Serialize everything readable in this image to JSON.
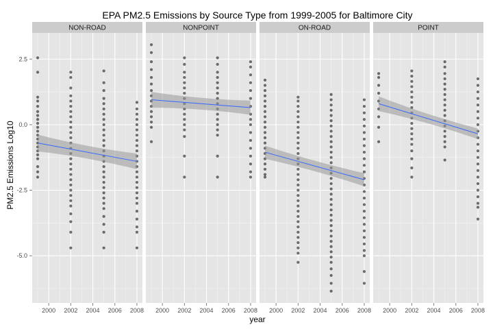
{
  "chart_data": {
    "type": "scatter",
    "title": "EPA PM2.5 Emissions by Source Type from 1999-2005 for Baltimore City",
    "xlabel": "year",
    "ylabel": "PM2.5 Emissions Log10",
    "xlim": [
      1998.5,
      2008.5
    ],
    "ylim": [
      -6.8,
      3.5
    ],
    "x_ticks": [
      2000,
      2002,
      2004,
      2006,
      2008
    ],
    "x_tick_labels": [
      "2000",
      "2002",
      "2004",
      "2006",
      "2008"
    ],
    "y_ticks": [
      2.5,
      0.0,
      -2.5,
      -5.0
    ],
    "y_tick_labels": [
      "2.5",
      "0.0",
      "-2.5",
      "-5.0"
    ],
    "grid": true,
    "smoother": "linear fit with grey confidence band",
    "colors": {
      "panel": "#e5e5e5",
      "strip": "#cccccc",
      "points": "#000000",
      "fit": "#3366ff",
      "band": "#999999"
    },
    "panels": [
      {
        "label": "NON-ROAD",
        "fit": {
          "x": [
            1999,
            2008
          ],
          "y": [
            -0.7,
            -1.4
          ],
          "band_halfwidth": [
            0.32,
            0.3
          ]
        },
        "points": [
          {
            "x": 1999,
            "y": [
              2.55,
              2.0,
              1.05,
              0.9,
              0.7,
              0.5,
              0.35,
              0.2,
              0.05,
              -0.1,
              -0.25,
              -0.4,
              -0.55,
              -0.7,
              -0.85,
              -1.0,
              -1.15,
              -1.3,
              -1.6,
              -1.8,
              -2.0
            ]
          },
          {
            "x": 2002,
            "y": [
              2.0,
              1.8,
              1.4,
              1.1,
              0.9,
              0.7,
              0.5,
              0.3,
              0.1,
              -0.1,
              -0.3,
              -0.5,
              -0.7,
              -0.9,
              -1.1,
              -1.3,
              -1.5,
              -1.7,
              -1.9,
              -2.1,
              -2.3,
              -2.5,
              -2.7,
              -2.9,
              -3.1,
              -3.4,
              -3.7,
              -4.1,
              -4.7
            ]
          },
          {
            "x": 2005,
            "y": [
              2.05,
              1.6,
              1.3,
              1.0,
              0.8,
              0.6,
              0.4,
              0.2,
              0.0,
              -0.2,
              -0.4,
              -0.6,
              -0.8,
              -1.0,
              -1.2,
              -1.4,
              -1.6,
              -1.8,
              -2.0,
              -2.2,
              -2.4,
              -2.6,
              -2.8,
              -3.0,
              -3.2,
              -3.5,
              -3.8,
              -4.1,
              -4.7
            ]
          },
          {
            "x": 2008,
            "y": [
              0.85,
              0.6,
              0.4,
              0.2,
              0.0,
              -0.2,
              -0.4,
              -0.6,
              -0.8,
              -1.0,
              -1.2,
              -1.4,
              -1.6,
              -1.8,
              -2.0,
              -2.2,
              -2.4,
              -2.6,
              -2.8,
              -3.0,
              -3.3,
              -3.6,
              -3.9,
              -4.1,
              -4.7
            ]
          }
        ]
      },
      {
        "label": "NONPOINT",
        "fit": {
          "x": [
            1999,
            2008
          ],
          "y": [
            0.95,
            0.65
          ],
          "band_halfwidth": [
            0.3,
            0.27
          ]
        },
        "points": [
          {
            "x": 1999,
            "y": [
              3.05,
              2.75,
              2.4,
              2.1,
              1.8,
              1.55,
              1.3,
              1.1,
              0.9,
              0.7,
              0.5,
              0.3,
              0.1,
              -0.1,
              -0.65
            ]
          },
          {
            "x": 2002,
            "y": [
              2.55,
              2.3,
              2.0,
              1.8,
              1.6,
              1.4,
              1.2,
              1.0,
              0.8,
              0.6,
              0.4,
              0.2,
              0.0,
              -0.2,
              -0.45,
              -1.2,
              -2.0
            ]
          },
          {
            "x": 2005,
            "y": [
              2.55,
              2.3,
              2.0,
              1.8,
              1.6,
              1.4,
              1.2,
              1.0,
              0.8,
              0.6,
              0.4,
              0.2,
              0.0,
              -0.2,
              -0.4,
              -1.2,
              -2.0
            ]
          },
          {
            "x": 2008,
            "y": [
              2.4,
              2.2,
              1.9,
              1.6,
              1.3,
              1.0,
              0.7,
              0.4,
              0.2,
              0.0,
              -0.3,
              -0.6,
              -0.9,
              -1.2,
              -1.5,
              -1.8,
              -2.0
            ]
          }
        ]
      },
      {
        "label": "ON-ROAD",
        "fit": {
          "x": [
            1999,
            2008
          ],
          "y": [
            -1.05,
            -2.1
          ],
          "band_halfwidth": [
            0.25,
            0.25
          ]
        },
        "points": [
          {
            "x": 1999,
            "y": [
              1.7,
              1.5,
              1.3,
              1.1,
              0.9,
              0.7,
              0.5,
              0.3,
              0.1,
              -0.1,
              -0.3,
              -0.5,
              -0.7,
              -0.9,
              -1.1,
              -1.3,
              -1.5,
              -1.7,
              -1.9,
              -2.0
            ]
          },
          {
            "x": 2002,
            "y": [
              1.05,
              0.9,
              0.7,
              0.5,
              0.3,
              0.1,
              -0.1,
              -0.3,
              -0.5,
              -0.7,
              -0.9,
              -1.1,
              -1.3,
              -1.5,
              -1.7,
              -1.9,
              -2.1,
              -2.3,
              -2.5,
              -2.7,
              -2.9,
              -3.1,
              -3.3,
              -3.5,
              -3.7,
              -3.9,
              -4.1,
              -4.3,
              -4.5,
              -4.7,
              -4.9,
              -5.25
            ]
          },
          {
            "x": 2005,
            "y": [
              1.15,
              0.95,
              0.75,
              0.55,
              0.35,
              0.15,
              -0.05,
              -0.25,
              -0.45,
              -0.65,
              -0.85,
              -1.05,
              -1.25,
              -1.45,
              -1.65,
              -1.85,
              -2.05,
              -2.25,
              -2.45,
              -2.65,
              -2.85,
              -3.05,
              -3.25,
              -3.45,
              -3.65,
              -3.85,
              -4.05,
              -4.25,
              -4.45,
              -4.65,
              -4.85,
              -5.05,
              -5.25,
              -5.5,
              -5.75,
              -6.05,
              -6.35
            ]
          },
          {
            "x": 2008,
            "y": [
              0.95,
              0.7,
              0.45,
              0.2,
              -0.05,
              -0.3,
              -0.55,
              -0.8,
              -1.05,
              -1.3,
              -1.55,
              -1.8,
              -2.05,
              -2.3,
              -2.55,
              -2.8,
              -3.05,
              -3.3,
              -3.55,
              -3.8,
              -4.05,
              -4.3,
              -4.55,
              -4.8,
              -5.0,
              -5.6,
              -6.05
            ]
          }
        ]
      },
      {
        "label": "POINT",
        "fit": {
          "x": [
            1999,
            2008
          ],
          "y": [
            0.8,
            -0.35
          ],
          "band_halfwidth": [
            0.28,
            0.2
          ]
        },
        "points": [
          {
            "x": 1999,
            "y": [
              1.95,
              1.8,
              1.5,
              1.2,
              0.9,
              0.6,
              0.3,
              -0.1,
              -0.65
            ]
          },
          {
            "x": 2002,
            "y": [
              2.05,
              1.85,
              1.65,
              1.45,
              1.25,
              1.05,
              0.85,
              0.65,
              0.45,
              0.25,
              0.05,
              -0.15,
              -0.35,
              -0.55,
              -0.75,
              -1.0,
              -1.3,
              -1.65,
              -2.0
            ]
          },
          {
            "x": 2005,
            "y": [
              2.4,
              2.2,
              1.95,
              1.75,
              1.55,
              1.35,
              1.15,
              0.95,
              0.75,
              0.55,
              0.35,
              0.15,
              -0.05,
              -0.25,
              -0.45,
              -0.65,
              -0.85,
              -1.35
            ]
          },
          {
            "x": 2008,
            "y": [
              1.75,
              1.5,
              1.25,
              1.0,
              0.75,
              0.5,
              0.25,
              0.0,
              -0.25,
              -0.5,
              -0.75,
              -1.0,
              -1.25,
              -1.5,
              -1.75,
              -2.0,
              -2.25,
              -2.5,
              -2.75,
              -3.0,
              -3.15,
              -3.6
            ]
          }
        ]
      }
    ]
  }
}
